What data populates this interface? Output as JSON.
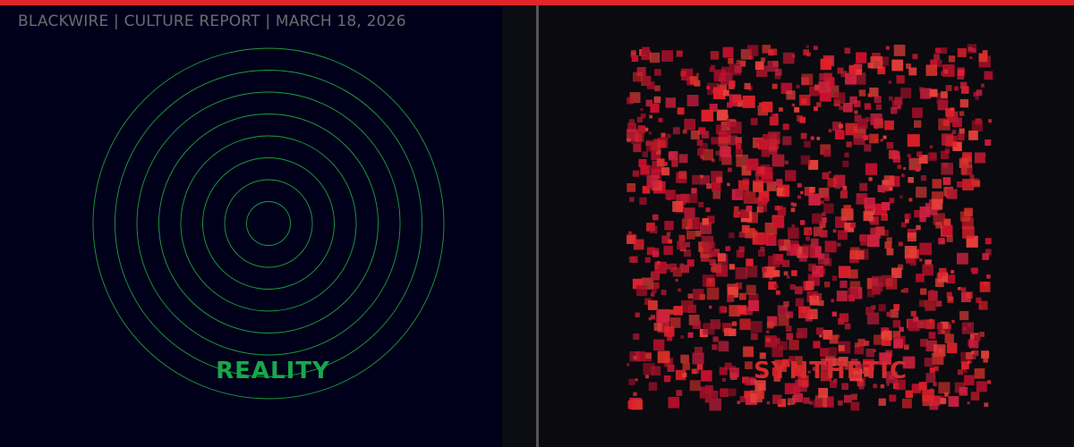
{
  "header": {
    "text": "BLACKWIRE | CULTURE REPORT | MARCH 18, 2026"
  },
  "panels": {
    "left": {
      "label": "REALITY",
      "color": "#17a84a",
      "ring_color": "#1e9e3e",
      "ring_count": 8
    },
    "right": {
      "label": "SYNTHETIC",
      "color": "#d62b2b",
      "square_colors": [
        "#e0202a",
        "#c8102e",
        "#d8302a",
        "#b01830",
        "#e8403a",
        "#a01028",
        "#d02040"
      ]
    }
  },
  "colors": {
    "accent": "#e0252b",
    "left_bg": "#00001a",
    "right_bg": "#0a0a0f"
  }
}
